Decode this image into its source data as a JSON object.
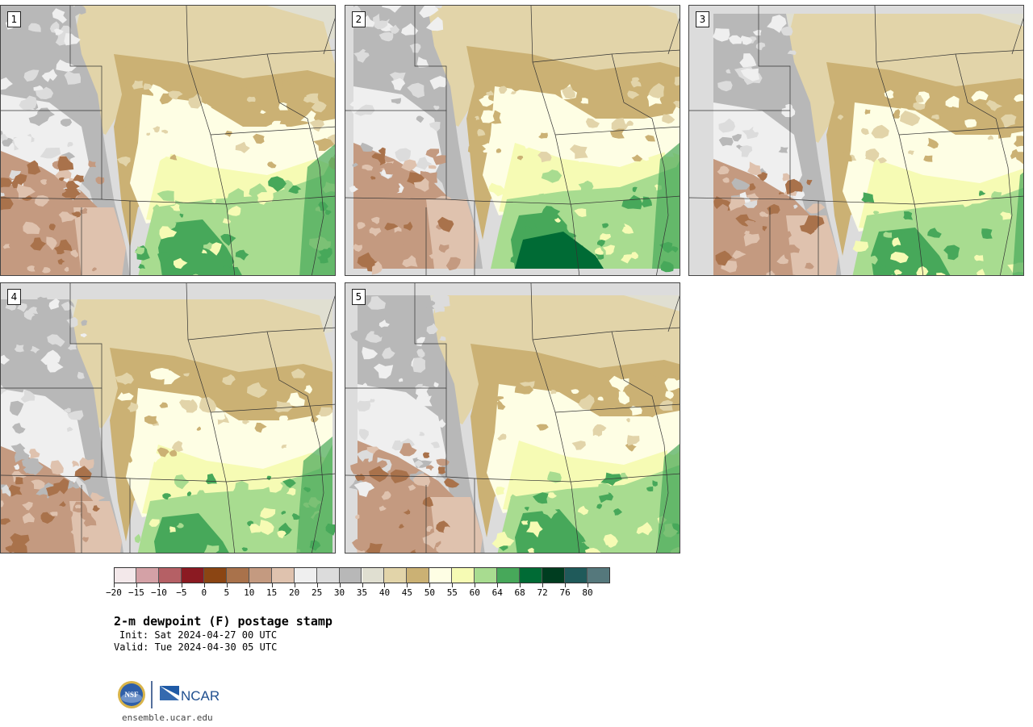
{
  "panels": [
    {
      "label": "1",
      "variant": 0
    },
    {
      "label": "2",
      "variant": 1
    },
    {
      "label": "3",
      "variant": 2
    },
    {
      "label": "4",
      "variant": 3
    },
    {
      "label": "5",
      "variant": 4
    }
  ],
  "colorbar": {
    "colors": [
      "#f3e8ea",
      "#d4a1a6",
      "#b56065",
      "#8b1a22",
      "#8b4513",
      "#a9724b",
      "#c49a80",
      "#dfc2ae",
      "#efefef",
      "#dcdcdc",
      "#b8b8b8",
      "#e0dfd1",
      "#e2d4a9",
      "#cbb174",
      "#fefee4",
      "#f6fbb4",
      "#a8dc90",
      "#47a85a",
      "#006b35",
      "#003d20",
      "#1f5a5a",
      "#55787c"
    ],
    "tick_labels": [
      "−20",
      "−15",
      "−10",
      "−5",
      "0",
      "5",
      "10",
      "15",
      "20",
      "25",
      "30",
      "35",
      "40",
      "45",
      "50",
      "55",
      "60",
      "64",
      "68",
      "72",
      "76",
      "80"
    ]
  },
  "title": "2-m dewpoint (F) postage stamp",
  "init": "Init: Sat 2024-04-27 00 UTC",
  "valid": "Valid: Tue 2024-04-30 05 UTC",
  "logo": {
    "nsf": "NSF",
    "ncar": "NCAR"
  },
  "site": "ensemble.ucar.edu"
}
